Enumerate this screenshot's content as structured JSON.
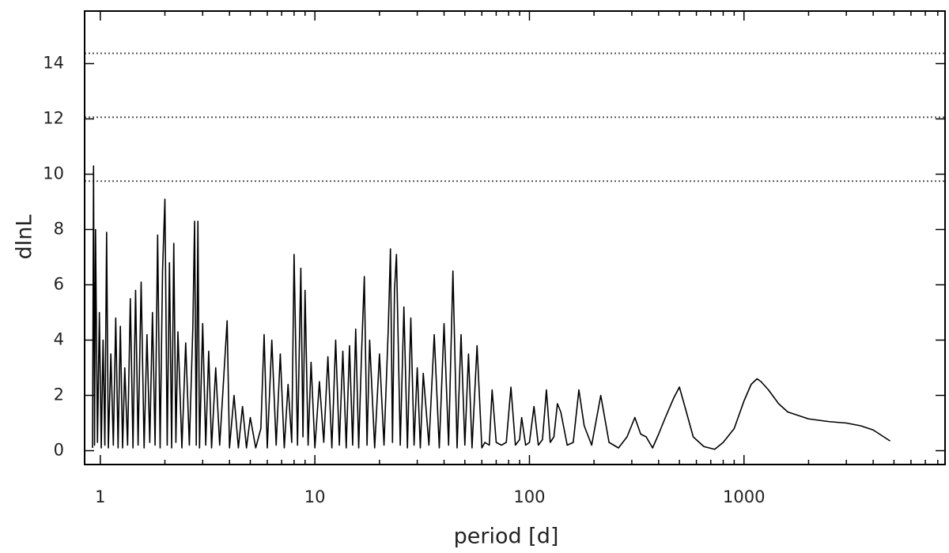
{
  "chart_data": {
    "type": "line",
    "x_label": "period [d]",
    "y_label": "dlnL",
    "xscale": "log",
    "xlim": [
      0.845,
      8650
    ],
    "ylim": [
      -0.5,
      15.9
    ],
    "xticks": [
      1,
      10,
      100,
      1000
    ],
    "xminorticks": [
      2,
      3,
      4,
      5,
      6,
      7,
      8,
      9,
      20,
      30,
      40,
      50,
      60,
      70,
      80,
      90,
      200,
      300,
      400,
      500,
      600,
      700,
      800,
      900,
      2000,
      3000,
      4000,
      5000,
      6000,
      7000,
      8000
    ],
    "yticks": [
      0,
      2,
      4,
      6,
      8,
      10,
      12,
      14
    ],
    "hlines": [
      9.75,
      12.06,
      14.37
    ],
    "hline_color": "#555555",
    "series": [
      {
        "color": "#000000",
        "x": [
          0.92,
          0.93,
          0.94,
          0.95,
          0.97,
          0.99,
          1.01,
          1.03,
          1.05,
          1.07,
          1.09,
          1.12,
          1.15,
          1.18,
          1.21,
          1.24,
          1.27,
          1.3,
          1.34,
          1.38,
          1.42,
          1.46,
          1.5,
          1.55,
          1.6,
          1.65,
          1.7,
          1.75,
          1.8,
          1.85,
          1.9,
          1.95,
          2.0,
          2.05,
          2.1,
          2.15,
          2.2,
          2.25,
          2.3,
          2.4,
          2.5,
          2.6,
          2.7,
          2.75,
          2.8,
          2.85,
          2.9,
          3.0,
          3.1,
          3.2,
          3.3,
          3.45,
          3.6,
          3.75,
          3.9,
          4.0,
          4.2,
          4.4,
          4.6,
          4.8,
          5.0,
          5.3,
          5.6,
          5.8,
          6.0,
          6.3,
          6.6,
          6.9,
          7.2,
          7.5,
          7.8,
          8.0,
          8.3,
          8.6,
          8.8,
          9.0,
          9.3,
          9.6,
          10,
          10.5,
          11,
          11.5,
          12,
          12.5,
          13,
          13.5,
          14,
          14.5,
          15,
          15.5,
          16,
          16.5,
          17,
          17.5,
          18,
          19,
          20,
          21,
          22,
          22.5,
          23,
          23.5,
          24,
          25,
          26,
          27,
          28,
          29,
          30,
          31,
          32,
          34,
          36,
          38,
          40,
          42,
          44,
          46,
          48,
          50,
          52,
          54,
          57,
          60,
          62,
          65,
          67,
          70,
          74,
          78,
          82,
          86,
          90,
          92,
          96,
          100,
          105,
          110,
          115,
          120,
          125,
          130,
          135,
          140,
          150,
          160,
          170,
          180,
          195,
          215,
          235,
          260,
          285,
          310,
          330,
          350,
          375,
          400,
          430,
          470,
          500,
          530,
          580,
          650,
          730,
          800,
          900,
          1000,
          1080,
          1150,
          1200,
          1300,
          1450,
          1600,
          2000,
          2500,
          3000,
          3500,
          4000,
          4800
        ],
        "values": [
          0.1,
          10.3,
          0.2,
          8.0,
          0.3,
          5.0,
          0.1,
          4.0,
          0.2,
          7.9,
          0.1,
          3.5,
          0.2,
          4.8,
          0.1,
          4.5,
          0.1,
          3.0,
          0.2,
          5.5,
          0.1,
          5.8,
          0.2,
          6.1,
          0.1,
          4.2,
          0.3,
          5.0,
          0.2,
          7.8,
          0.1,
          6.5,
          9.1,
          0.2,
          6.8,
          0.1,
          7.5,
          0.3,
          4.3,
          0.1,
          3.9,
          0.2,
          4.5,
          8.3,
          0.2,
          8.3,
          0.1,
          4.6,
          0.2,
          3.6,
          0.1,
          3.0,
          0.2,
          2.5,
          4.7,
          0.1,
          2.0,
          0.1,
          1.6,
          0.1,
          1.2,
          0.1,
          0.8,
          4.2,
          0.1,
          4.0,
          0.2,
          3.5,
          0.1,
          2.4,
          0.3,
          7.1,
          0.2,
          6.6,
          0.5,
          5.8,
          0.2,
          3.2,
          0.1,
          2.5,
          0.3,
          3.4,
          0.1,
          4.0,
          0.2,
          3.6,
          0.1,
          3.8,
          0.2,
          4.4,
          0.1,
          3.5,
          6.3,
          0.2,
          4.0,
          0.1,
          3.5,
          0.2,
          4.5,
          7.3,
          0.3,
          5.8,
          7.1,
          0.2,
          5.2,
          0.1,
          4.8,
          0.2,
          3.0,
          0.1,
          2.8,
          0.2,
          4.2,
          0.1,
          4.6,
          0.2,
          6.5,
          0.1,
          4.2,
          0.2,
          3.5,
          0.1,
          3.8,
          0.1,
          0.3,
          0.2,
          2.2,
          0.3,
          0.2,
          0.3,
          2.3,
          0.2,
          0.4,
          1.2,
          0.2,
          0.3,
          1.6,
          0.2,
          0.4,
          2.2,
          0.3,
          0.5,
          1.7,
          1.4,
          0.2,
          0.3,
          2.2,
          0.9,
          0.2,
          2.0,
          0.3,
          0.1,
          0.5,
          1.2,
          0.6,
          0.5,
          0.1,
          0.6,
          1.2,
          1.9,
          2.3,
          1.6,
          0.5,
          0.15,
          0.05,
          0.3,
          0.8,
          1.8,
          2.4,
          2.6,
          2.5,
          2.2,
          1.7,
          1.4,
          1.15,
          1.05,
          1.0,
          0.9,
          0.75,
          0.35
        ]
      }
    ]
  }
}
